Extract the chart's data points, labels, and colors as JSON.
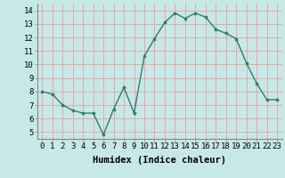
{
  "x": [
    0,
    1,
    2,
    3,
    4,
    5,
    6,
    7,
    8,
    9,
    10,
    11,
    12,
    13,
    14,
    15,
    16,
    17,
    18,
    19,
    20,
    21,
    22,
    23
  ],
  "y": [
    8.0,
    7.8,
    7.0,
    6.6,
    6.4,
    6.4,
    4.8,
    6.7,
    8.3,
    6.4,
    10.6,
    11.9,
    13.1,
    13.8,
    13.4,
    13.8,
    13.5,
    12.6,
    12.3,
    11.9,
    10.1,
    8.6,
    7.4,
    7.4
  ],
  "line_color": "#2e7d6e",
  "marker": "o",
  "marker_size": 2.2,
  "bg_color": "#c8e8e8",
  "grid_color": "#e8a0a0",
  "xlabel": "Humidex (Indice chaleur)",
  "ylim": [
    4.5,
    14.5
  ],
  "xlim": [
    -0.5,
    23.5
  ],
  "yticks": [
    5,
    6,
    7,
    8,
    9,
    10,
    11,
    12,
    13,
    14
  ],
  "xticks": [
    0,
    1,
    2,
    3,
    4,
    5,
    6,
    7,
    8,
    9,
    10,
    11,
    12,
    13,
    14,
    15,
    16,
    17,
    18,
    19,
    20,
    21,
    22,
    23
  ],
  "xlabel_fontsize": 7.5,
  "tick_fontsize": 6.5,
  "linewidth": 1.0
}
